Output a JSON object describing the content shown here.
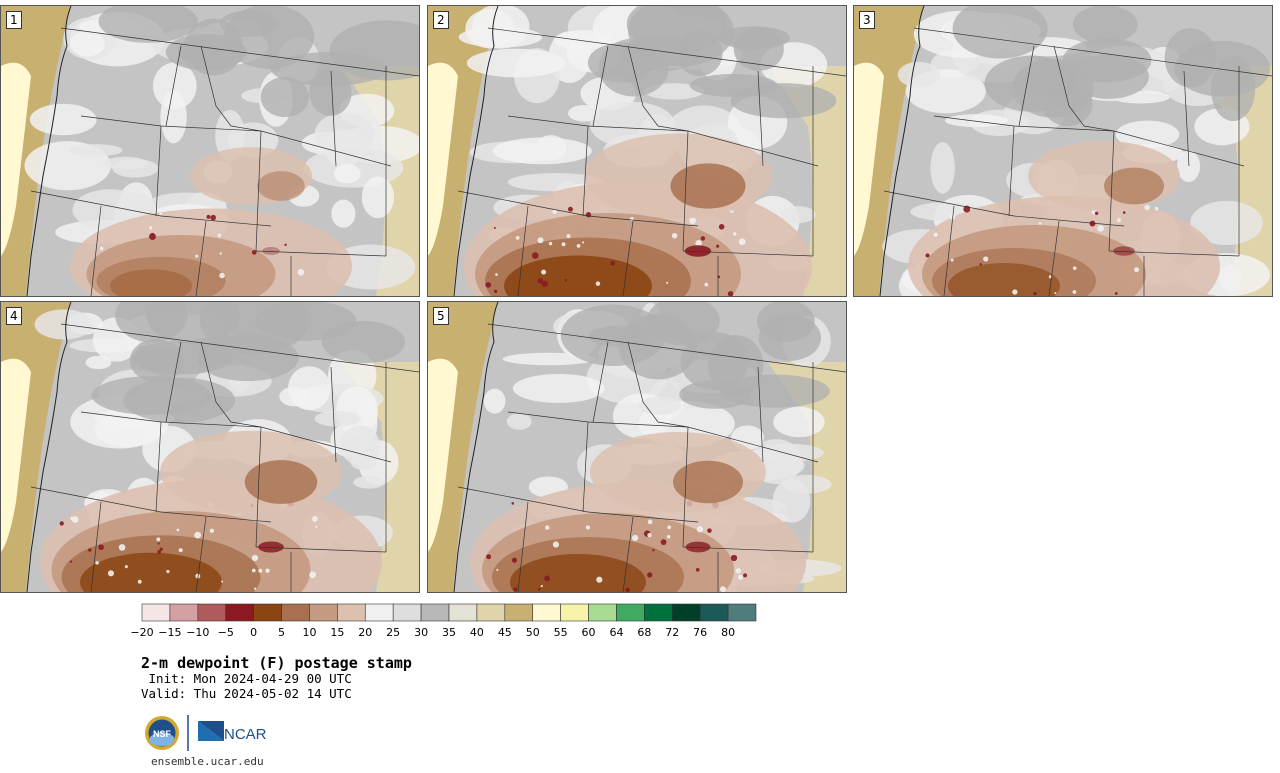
{
  "panels": [
    {
      "label": "1",
      "intensity": 0.35
    },
    {
      "label": "2",
      "intensity": 0.9
    },
    {
      "label": "3",
      "intensity": 0.6
    },
    {
      "label": "4",
      "intensity": 0.85
    },
    {
      "label": "5",
      "intensity": 0.8
    }
  ],
  "colorbar": {
    "colors": [
      "#f5e6e6",
      "#d4a0a2",
      "#b05a5e",
      "#8a1a22",
      "#8b4513",
      "#a8704e",
      "#c49a80",
      "#dcc0b0",
      "#f0f0f0",
      "#dedede",
      "#b8b8b8",
      "#e4e2d4",
      "#e0d4aa",
      "#c8b070",
      "#fff8d0",
      "#f6f4a8",
      "#a8dc90",
      "#40aa60",
      "#00703c",
      "#004028",
      "#1c5a5a",
      "#4f7c7c"
    ],
    "ticks": [
      "−20",
      "−15",
      "−10",
      "−5",
      "0",
      "5",
      "10",
      "15",
      "20",
      "25",
      "30",
      "35",
      "40",
      "45",
      "50",
      "55",
      "60",
      "64",
      "68",
      "72",
      "76",
      "80"
    ]
  },
  "title": "2-m dewpoint (F) postage stamp",
  "init": " Init: Mon 2024-04-29 00 UTC",
  "valid": "Valid: Thu 2024-05-02 14 UTC",
  "logos": {
    "nsf": "NSF",
    "ncar": "NCAR"
  },
  "url": "ensemble.ucar.edu"
}
